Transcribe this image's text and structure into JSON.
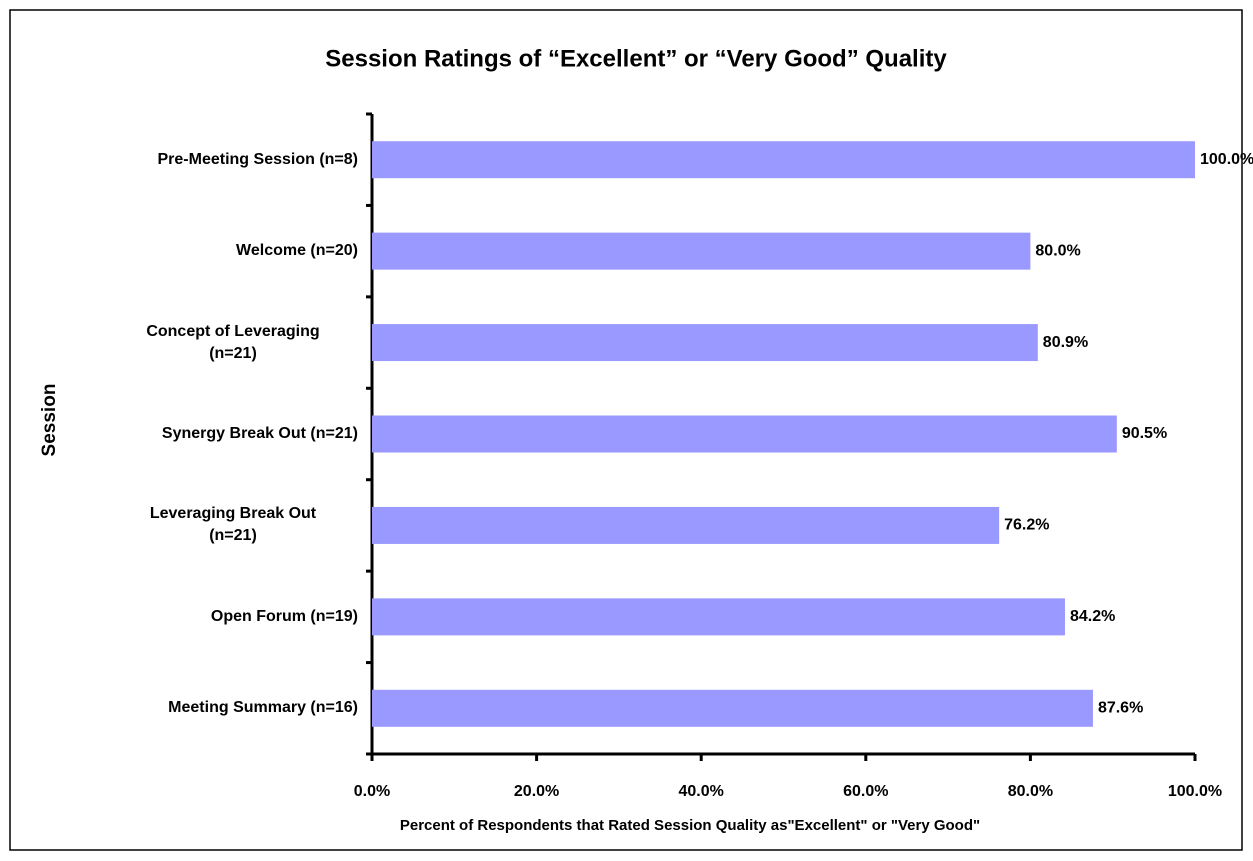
{
  "chart_data": {
    "type": "barh",
    "title": "Session Ratings of “Excellent” or “Very Good” Quality",
    "x_label": "Percent of Respondents that Rated Session Quality as\"Excellent\" or \"Very Good\"",
    "y_label": "Session",
    "categories": [
      "Pre-Meeting Session (n=8)",
      "Welcome (n=20)",
      "Concept of Leveraging\n(n=21)",
      "Synergy Break Out (n=21)",
      "Leveraging Break Out\n(n=21)",
      "Open Forum (n=19)",
      "Meeting Summary (n=16)"
    ],
    "values": [
      100,
      80,
      80.9,
      90.5,
      76.2,
      84.2,
      87.6
    ],
    "value_labels": [
      "100.0%",
      "80.0%",
      "80.9%",
      "90.5%",
      "76.2%",
      "84.2%",
      "87.6%"
    ],
    "color": "#9999ff",
    "xlim": [
      0,
      100
    ],
    "xticks": [
      {
        "value": 0,
        "label": "0.0%"
      },
      {
        "value": 20,
        "label": "20.0%"
      },
      {
        "value": 40,
        "label": "40.0%"
      },
      {
        "value": 60,
        "label": "60.0%"
      },
      {
        "value": 80,
        "label": "80.0%"
      },
      {
        "value": 100,
        "label": "100.0%"
      }
    ],
    "grid": false
  }
}
